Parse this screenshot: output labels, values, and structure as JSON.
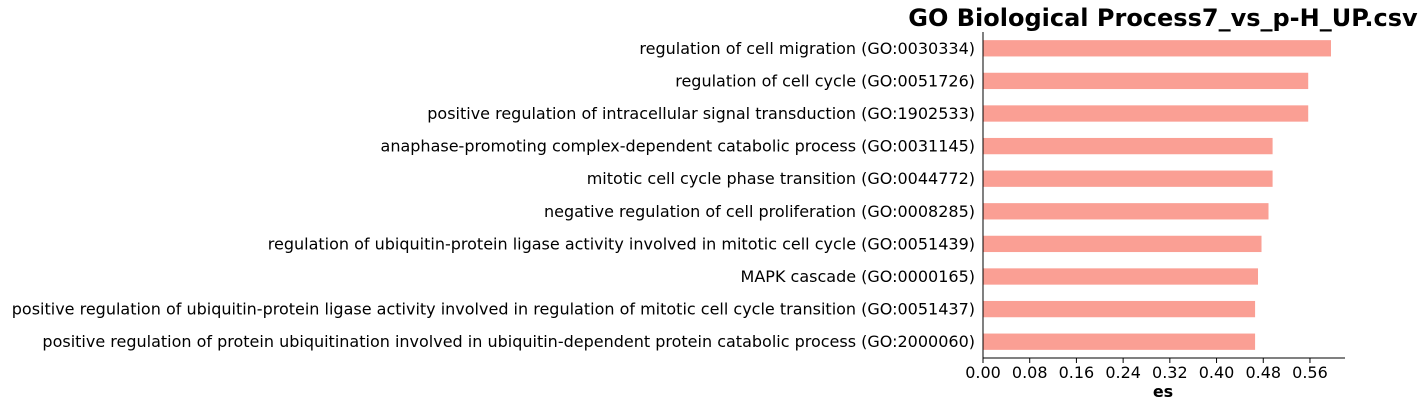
{
  "chart_data": {
    "type": "bar",
    "orientation": "horizontal",
    "title": "GO Biological Process7_vs_p-H_UP.csv",
    "xlabel": "es",
    "ylabel": "",
    "xlim": [
      0,
      0.62
    ],
    "xticks": [
      "0.00",
      "0.08",
      "0.16",
      "0.24",
      "0.32",
      "0.40",
      "0.48",
      "0.56"
    ],
    "grid": false,
    "legend": "none",
    "bar_color": "#FA9F94",
    "categories": [
      "regulation of cell migration (GO:0030334)",
      "regulation of cell cycle (GO:0051726)",
      "positive regulation of intracellular signal transduction (GO:1902533)",
      "anaphase-promoting complex-dependent catabolic process (GO:0031145)",
      "mitotic cell cycle phase transition (GO:0044772)",
      "negative regulation of cell proliferation (GO:0008285)",
      "regulation of ubiquitin-protein ligase activity involved in mitotic cell cycle (GO:0051439)",
      "MAPK cascade (GO:0000165)",
      "positive regulation of ubiquitin-protein ligase activity involved in regulation of mitotic cell cycle transition (GO:0051437)",
      "positive regulation of protein ubiquitination involved in ubiquitin-dependent protein catabolic process (GO:2000060)"
    ],
    "values": [
      0.596,
      0.557,
      0.557,
      0.496,
      0.496,
      0.489,
      0.477,
      0.471,
      0.466,
      0.466
    ]
  }
}
